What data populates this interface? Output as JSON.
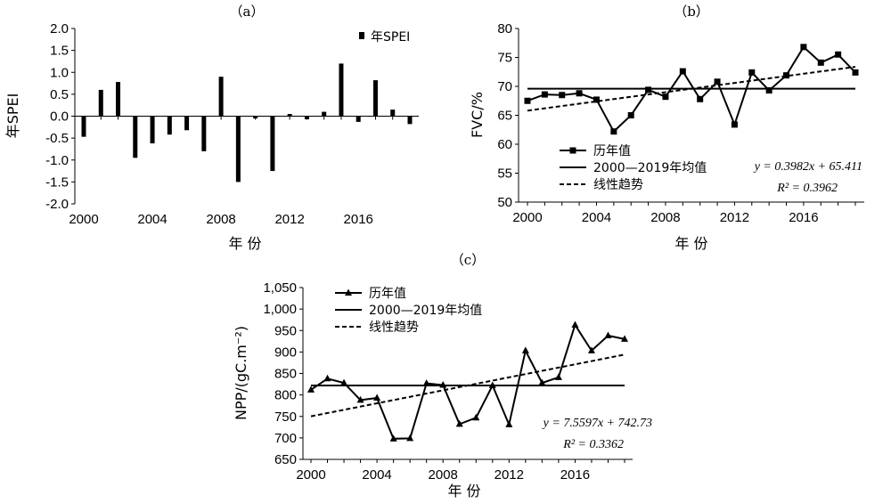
{
  "chart_data": [
    {
      "id": "a",
      "type": "bar",
      "panel_label": "（a）",
      "x": [
        2000,
        2001,
        2002,
        2003,
        2004,
        2005,
        2006,
        2007,
        2008,
        2009,
        2010,
        2011,
        2012,
        2013,
        2014,
        2015,
        2016,
        2017,
        2018,
        2019
      ],
      "series": [
        {
          "name": "年SPEI",
          "values": [
            -0.47,
            0.6,
            0.78,
            -0.95,
            -0.62,
            -0.42,
            -0.32,
            -0.8,
            0.9,
            -1.5,
            -0.05,
            -1.25,
            0.05,
            -0.07,
            0.1,
            1.2,
            -0.13,
            0.82,
            0.15,
            -0.18
          ]
        }
      ],
      "xlabel": "年 份",
      "ylabel": "年SPEI",
      "ylim": [
        -2.0,
        2.0
      ],
      "yticks": [
        "2.0",
        "1.5",
        "1.0",
        "0.5",
        "0.0",
        "-0.5",
        "-1.0",
        "-1.5",
        "-2.0"
      ],
      "xticks": [
        "2000",
        "2004",
        "2008",
        "2012",
        "2016"
      ],
      "legend_position": "top-right"
    },
    {
      "id": "b",
      "type": "line",
      "panel_label": "（b）",
      "x": [
        2000,
        2001,
        2002,
        2003,
        2004,
        2005,
        2006,
        2007,
        2008,
        2009,
        2010,
        2011,
        2012,
        2013,
        2014,
        2015,
        2016,
        2017,
        2018,
        2019
      ],
      "series": [
        {
          "name": "历年值",
          "values": [
            67.5,
            68.6,
            68.5,
            68.8,
            67.7,
            62.2,
            65.0,
            69.4,
            68.2,
            72.6,
            67.8,
            70.8,
            63.4,
            72.4,
            69.3,
            71.9,
            76.8,
            74.1,
            75.5,
            72.4
          ]
        }
      ],
      "mean_name": "2000—2019年均值",
      "mean": 69.6,
      "trend_name": "线性趋势",
      "trend": {
        "slope": 0.3982,
        "intercept": 65.411
      },
      "equation": "y = 0.3982x + 65.411",
      "r2": "R² = 0.3962",
      "xlabel": "年 份",
      "ylabel": "FVC/%",
      "ylim": [
        50,
        80
      ],
      "yticks": [
        "80",
        "75",
        "70",
        "65",
        "60",
        "55",
        "50"
      ],
      "xticks": [
        "2000",
        "2004",
        "2008",
        "2012",
        "2016"
      ],
      "legend_position": "bottom-left"
    },
    {
      "id": "c",
      "type": "line",
      "panel_label": "（c）",
      "x": [
        2000,
        2001,
        2002,
        2003,
        2004,
        2005,
        2006,
        2007,
        2008,
        2009,
        2010,
        2011,
        2012,
        2013,
        2014,
        2015,
        2016,
        2017,
        2018,
        2019
      ],
      "series": [
        {
          "name": "历年值",
          "values": [
            812,
            838,
            828,
            788,
            793,
            698,
            699,
            827,
            823,
            732,
            747,
            822,
            731,
            903,
            828,
            841,
            963,
            903,
            938,
            930
          ]
        }
      ],
      "mean_name": "2000—2019年均值",
      "mean": 822,
      "trend_name": "线性趋势",
      "trend": {
        "slope": 7.5597,
        "intercept": 742.73
      },
      "equation": "y = 7.5597x + 742.73",
      "r2": "R² = 0.3362",
      "xlabel": "年 份",
      "ylabel": "NPP/(gC.m⁻²)",
      "ylim": [
        650,
        1050
      ],
      "yticks": [
        "1,050",
        "1,000",
        "950",
        "900",
        "850",
        "800",
        "750",
        "700",
        "650"
      ],
      "xticks": [
        "2000",
        "2004",
        "2008",
        "2012",
        "2016"
      ],
      "legend_position": "top-left"
    }
  ]
}
